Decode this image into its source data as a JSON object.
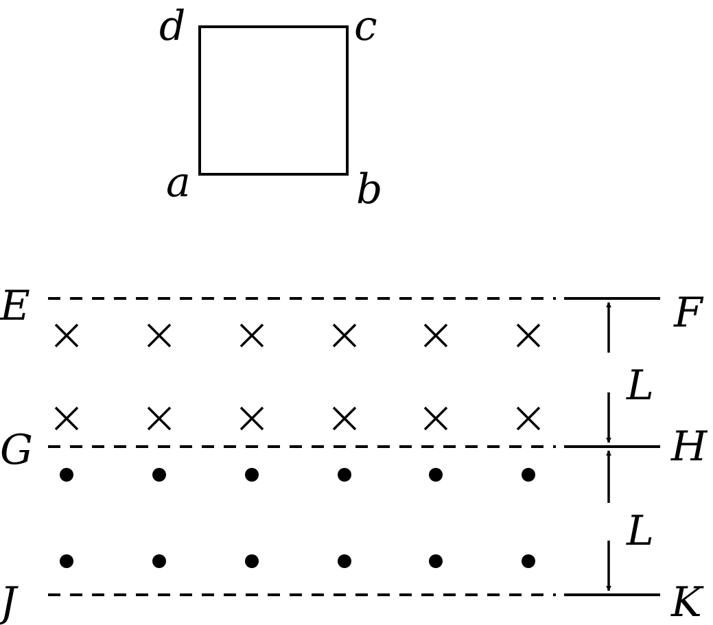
{
  "square": {
    "corner_labels": {
      "a": "a",
      "b": "b",
      "c": "c",
      "d": "d"
    }
  },
  "boundaries": [
    {
      "left": "E",
      "right": "F"
    },
    {
      "left": "G",
      "right": "H"
    },
    {
      "left": "J",
      "right": "K"
    }
  ],
  "regions": [
    {
      "field_symbol": "cross",
      "rows": 2,
      "per_row": 6,
      "width_label": "L"
    },
    {
      "field_symbol": "dot",
      "rows": 2,
      "per_row": 6,
      "width_label": "L"
    }
  ],
  "colors": {
    "ink": "#000000",
    "background": "#ffffff"
  }
}
